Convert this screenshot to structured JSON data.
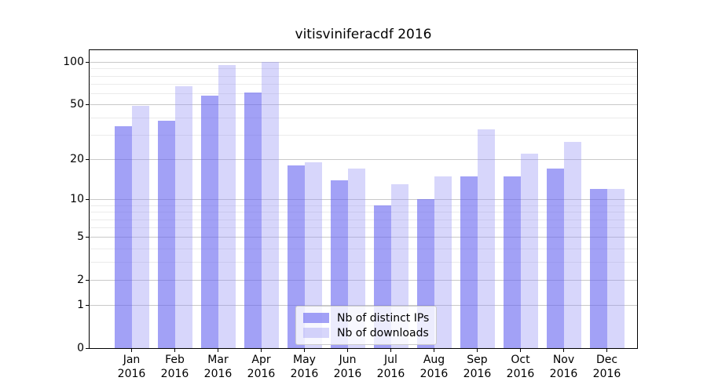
{
  "chart_data": {
    "type": "bar",
    "title": "vitisviniferacdf 2016",
    "categories": [
      "Jan 2016",
      "Feb 2016",
      "Mar 2016",
      "Apr 2016",
      "May 2016",
      "Jun 2016",
      "Jul 2016",
      "Aug 2016",
      "Sep 2016",
      "Oct 2016",
      "Nov 2016",
      "Dec 2016"
    ],
    "series": [
      {
        "name": "Nb of distinct IPs",
        "color": "rgba(105,103,240,0.62)",
        "values": [
          35,
          38,
          58,
          61,
          18,
          14,
          9,
          10,
          15,
          15,
          17,
          12
        ]
      },
      {
        "name": "Nb of downloads",
        "color": "rgba(150,148,245,0.38)",
        "values": [
          49,
          67,
          95,
          100,
          19,
          17,
          13,
          15,
          33,
          22,
          27,
          12
        ]
      }
    ],
    "xlabel": "",
    "ylabel": "",
    "yscale": "log1p",
    "ylim": [
      0,
      100
    ],
    "y_tick_values": [
      0,
      1,
      2,
      5,
      10,
      20,
      50,
      100
    ],
    "y_tick_labels": [
      "0",
      "1",
      "2",
      "5",
      "10",
      "20",
      "50",
      "100"
    ],
    "y_minor_gridlines": [
      3,
      4,
      6,
      7,
      8,
      9,
      30,
      40,
      60,
      70,
      80,
      90
    ],
    "grid": true,
    "legend_position": "lower center"
  },
  "colors": {
    "background": "#ffffff",
    "axis_frame": "#000000",
    "major_gridline": "#c9c9c9",
    "minor_gridline": "#ebebeb",
    "legend_border": "#cccccc",
    "text": "#000000"
  }
}
